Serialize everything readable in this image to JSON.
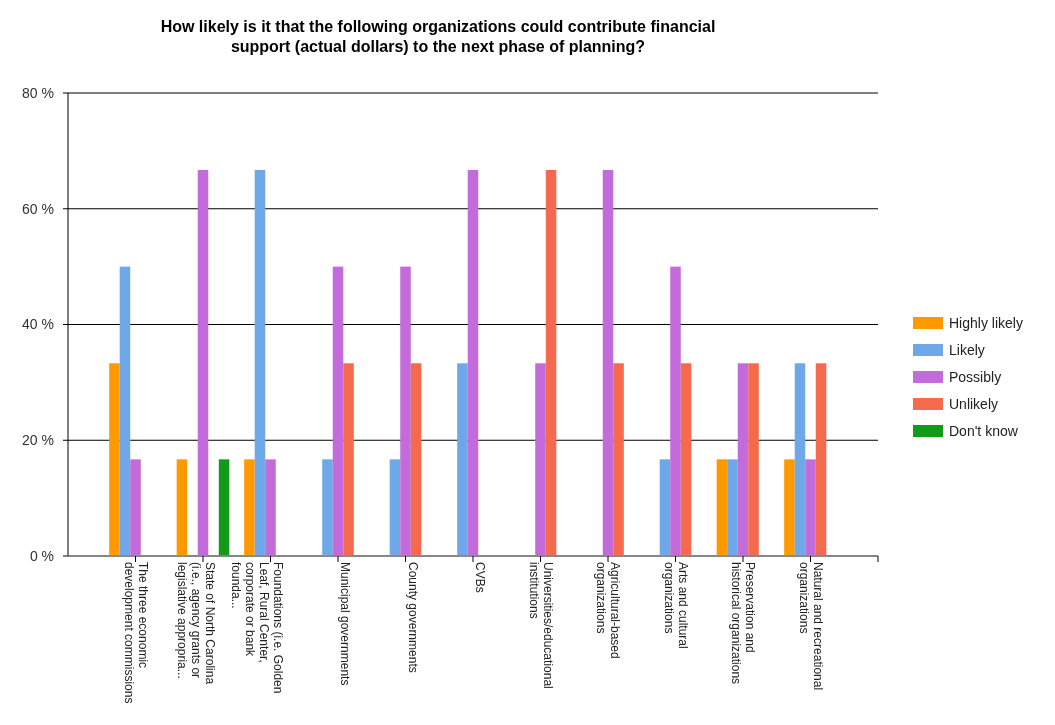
{
  "chart_data": {
    "type": "bar",
    "title": "How likely is it that the following organizations could contribute financial support (actual dollars) to the next phase of planning?",
    "categories": [
      "The three economic development commissions",
      "State of North Carolina (i.e., agency grants or legislative appropria...",
      "Foundations (i.e. Golden Leaf, Rural Center, corporate or bank founda...",
      "Municipal governments",
      "County governments",
      "CVBs",
      "Universities/educational institutions",
      "Agricultural-based organizations",
      "Arts and cultural organizations",
      "Preservation and historical organizations",
      "Natural and recreational organizations"
    ],
    "series": [
      {
        "name": "Highly likely",
        "color": "#ff9900",
        "values": [
          33.3,
          16.7,
          16.7,
          0,
          0,
          0,
          0,
          0,
          0,
          16.7,
          16.7
        ]
      },
      {
        "name": "Likely",
        "color": "#6fa8e8",
        "values": [
          50,
          0,
          66.7,
          16.7,
          16.7,
          33.3,
          0,
          0,
          16.7,
          16.7,
          33.3
        ]
      },
      {
        "name": "Possibly",
        "color": "#c46bdc",
        "values": [
          16.7,
          66.7,
          16.7,
          50,
          50,
          66.7,
          33.3,
          66.7,
          50,
          33.3,
          16.7
        ]
      },
      {
        "name": "Unlikely",
        "color": "#f56a4c",
        "values": [
          0,
          0,
          0,
          33.3,
          33.3,
          0,
          66.7,
          33.3,
          33.3,
          33.3,
          33.3
        ]
      },
      {
        "name": "Don't know",
        "color": "#139a1a",
        "values": [
          0,
          16.7,
          0,
          0,
          0,
          0,
          0,
          0,
          0,
          0,
          0
        ]
      }
    ],
    "ylim": [
      0,
      80
    ],
    "yticks": [
      {
        "value": 0,
        "label": "0 %"
      },
      {
        "value": 20,
        "label": "20 %"
      },
      {
        "value": 40,
        "label": "40 %"
      },
      {
        "value": 60,
        "label": "60 %"
      },
      {
        "value": 80,
        "label": "80 %"
      }
    ],
    "grid": "y",
    "legend": "right"
  }
}
